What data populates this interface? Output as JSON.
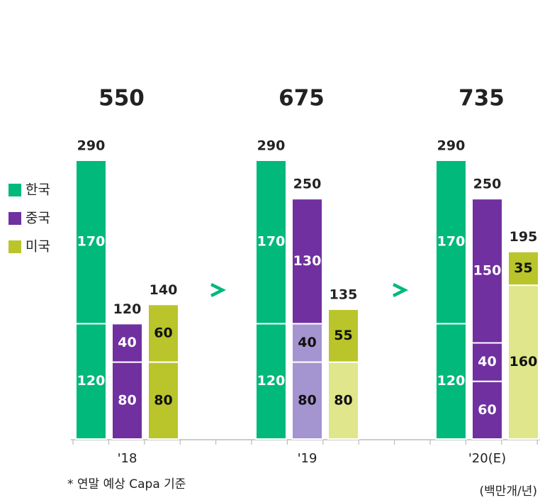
{
  "chart_data": {
    "type": "grouped_stacked_bar",
    "series": [
      {
        "name": "한국",
        "color": "#00b97a"
      },
      {
        "name": "중국",
        "color": "#7030a0"
      },
      {
        "name": "미국",
        "color": "#b9c52a"
      }
    ],
    "groups": [
      {
        "category": "'18",
        "total": 550,
        "bars": [
          {
            "total": 290,
            "segments": [
              {
                "value": 120,
                "color": "#00b97a"
              },
              {
                "value": 170,
                "color": "#00b97a"
              }
            ]
          },
          {
            "total": 120,
            "segments": [
              {
                "value": 80,
                "color": "#7030a0"
              },
              {
                "value": 40,
                "color": "#7030a0"
              }
            ]
          },
          {
            "total": 140,
            "segments": [
              {
                "value": 80,
                "color": "#b9c52a"
              },
              {
                "value": 60,
                "color": "#b9c52a"
              }
            ]
          }
        ]
      },
      {
        "category": "'19",
        "total": 675,
        "bars": [
          {
            "total": 290,
            "segments": [
              {
                "value": 120,
                "color": "#00b97a"
              },
              {
                "value": 170,
                "color": "#00b97a"
              }
            ]
          },
          {
            "total": 250,
            "segments": [
              {
                "value": 80,
                "color": "#a494cf"
              },
              {
                "value": 40,
                "color": "#a494cf"
              },
              {
                "value": 130,
                "color": "#7030a0"
              }
            ]
          },
          {
            "total": 135,
            "segments": [
              {
                "value": 80,
                "color": "#dfe68c"
              },
              {
                "value": 55,
                "color": "#b9c52a"
              }
            ]
          }
        ]
      },
      {
        "category": "'20(E)",
        "total": 735,
        "bars": [
          {
            "total": 290,
            "segments": [
              {
                "value": 120,
                "color": "#00b97a"
              },
              {
                "value": 170,
                "color": "#00b97a"
              }
            ]
          },
          {
            "total": 250,
            "segments": [
              {
                "value": 60,
                "color": "#7030a0"
              },
              {
                "value": 40,
                "color": "#7030a0"
              },
              {
                "value": 150,
                "color": "#7030a0"
              }
            ]
          },
          {
            "total": 195,
            "segments": [
              {
                "value": 160,
                "color": "#dfe68c"
              },
              {
                "value": 35,
                "color": "#b9c52a"
              }
            ]
          }
        ]
      }
    ],
    "footnote": "* 연말 예상 Capa 기준",
    "unit": "(백만개/년)"
  }
}
